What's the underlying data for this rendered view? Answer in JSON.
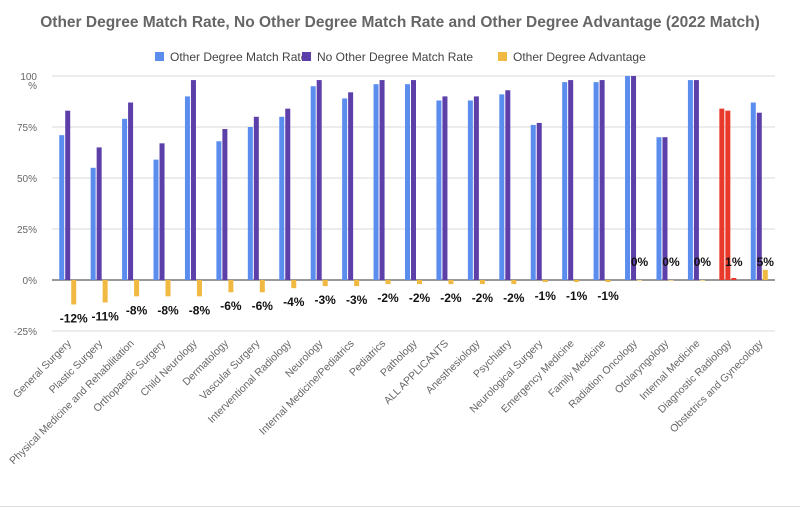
{
  "chart_data": {
    "type": "bar",
    "title": "Other Degree Match Rate, No Other Degree Match Rate and Other Degree Advantage (2022 Match)",
    "xlabel": "",
    "ylabel": "",
    "ylim": [
      -25,
      100
    ],
    "y_ticks": [
      "100\n%",
      "75%",
      "50%",
      "25%",
      "0%",
      "-25%"
    ],
    "y_tick_values": [
      100,
      75,
      50,
      25,
      0,
      -25
    ],
    "grid": true,
    "legend_position": "top",
    "categories": [
      "General Surgery",
      "Plastic Surgery",
      "Physical Medicine and Rehabilitation",
      "Orthopaedic Surgery",
      "Child Neurology",
      "Dermatology",
      "Vascular Surgery",
      "Interventional Radiology",
      "Neurology",
      "Internal Medicine/Pediatrics",
      "Pediatrics",
      "Pathology",
      "ALL APPLICANTS",
      "Anesthesiology",
      "Psychiatry",
      "Neurological Surgery",
      "Emergency Medicine",
      "Family Medicine",
      "Radiation Oncology",
      "Otolaryngology",
      "Internal Medicine",
      "Diagnostic Radiology",
      "Obstetrics and Gynecology"
    ],
    "series": [
      {
        "name": "Other Degree Match Rate",
        "color": "#5b8def",
        "values": [
          71,
          55,
          79,
          59,
          90,
          68,
          75,
          80,
          95,
          89,
          96,
          96,
          88,
          88,
          91,
          76,
          97,
          97,
          100,
          70,
          98,
          84,
          87
        ]
      },
      {
        "name": "No Other Degree Match Rate",
        "color": "#5c3fa8",
        "values": [
          83,
          65,
          87,
          67,
          98,
          74,
          80,
          84,
          98,
          92,
          98,
          98,
          90,
          90,
          93,
          77,
          98,
          98,
          100,
          70,
          98,
          83,
          82
        ]
      },
      {
        "name": "Other Degree Advantage",
        "color": "#f0b942",
        "values": [
          -12,
          -11,
          -8,
          -8,
          -8,
          -6,
          -6,
          -4,
          -3,
          -3,
          -2,
          -2,
          -2,
          -2,
          -2,
          -1,
          -1,
          -1,
          0,
          0,
          0,
          1,
          5
        ]
      }
    ],
    "highlight": {
      "category": "Diagnostic Radiology",
      "color": "#e8392b"
    },
    "data_labels": [
      "-12%",
      "-11%",
      "-8%",
      "-8%",
      "-8%",
      "-6%",
      "-6%",
      "-4%",
      "-3%",
      "-3%",
      "-2%",
      "-2%",
      "-2%",
      "-2%",
      "-2%",
      "-1%",
      "-1%",
      "-1%",
      "0%",
      "0%",
      "0%",
      "1%",
      "5%"
    ]
  },
  "colors": {
    "title": "#666666",
    "axis_text": "#666666",
    "grid": "#d9d9d9",
    "baseline": "#333333",
    "label_text": "#111111"
  }
}
